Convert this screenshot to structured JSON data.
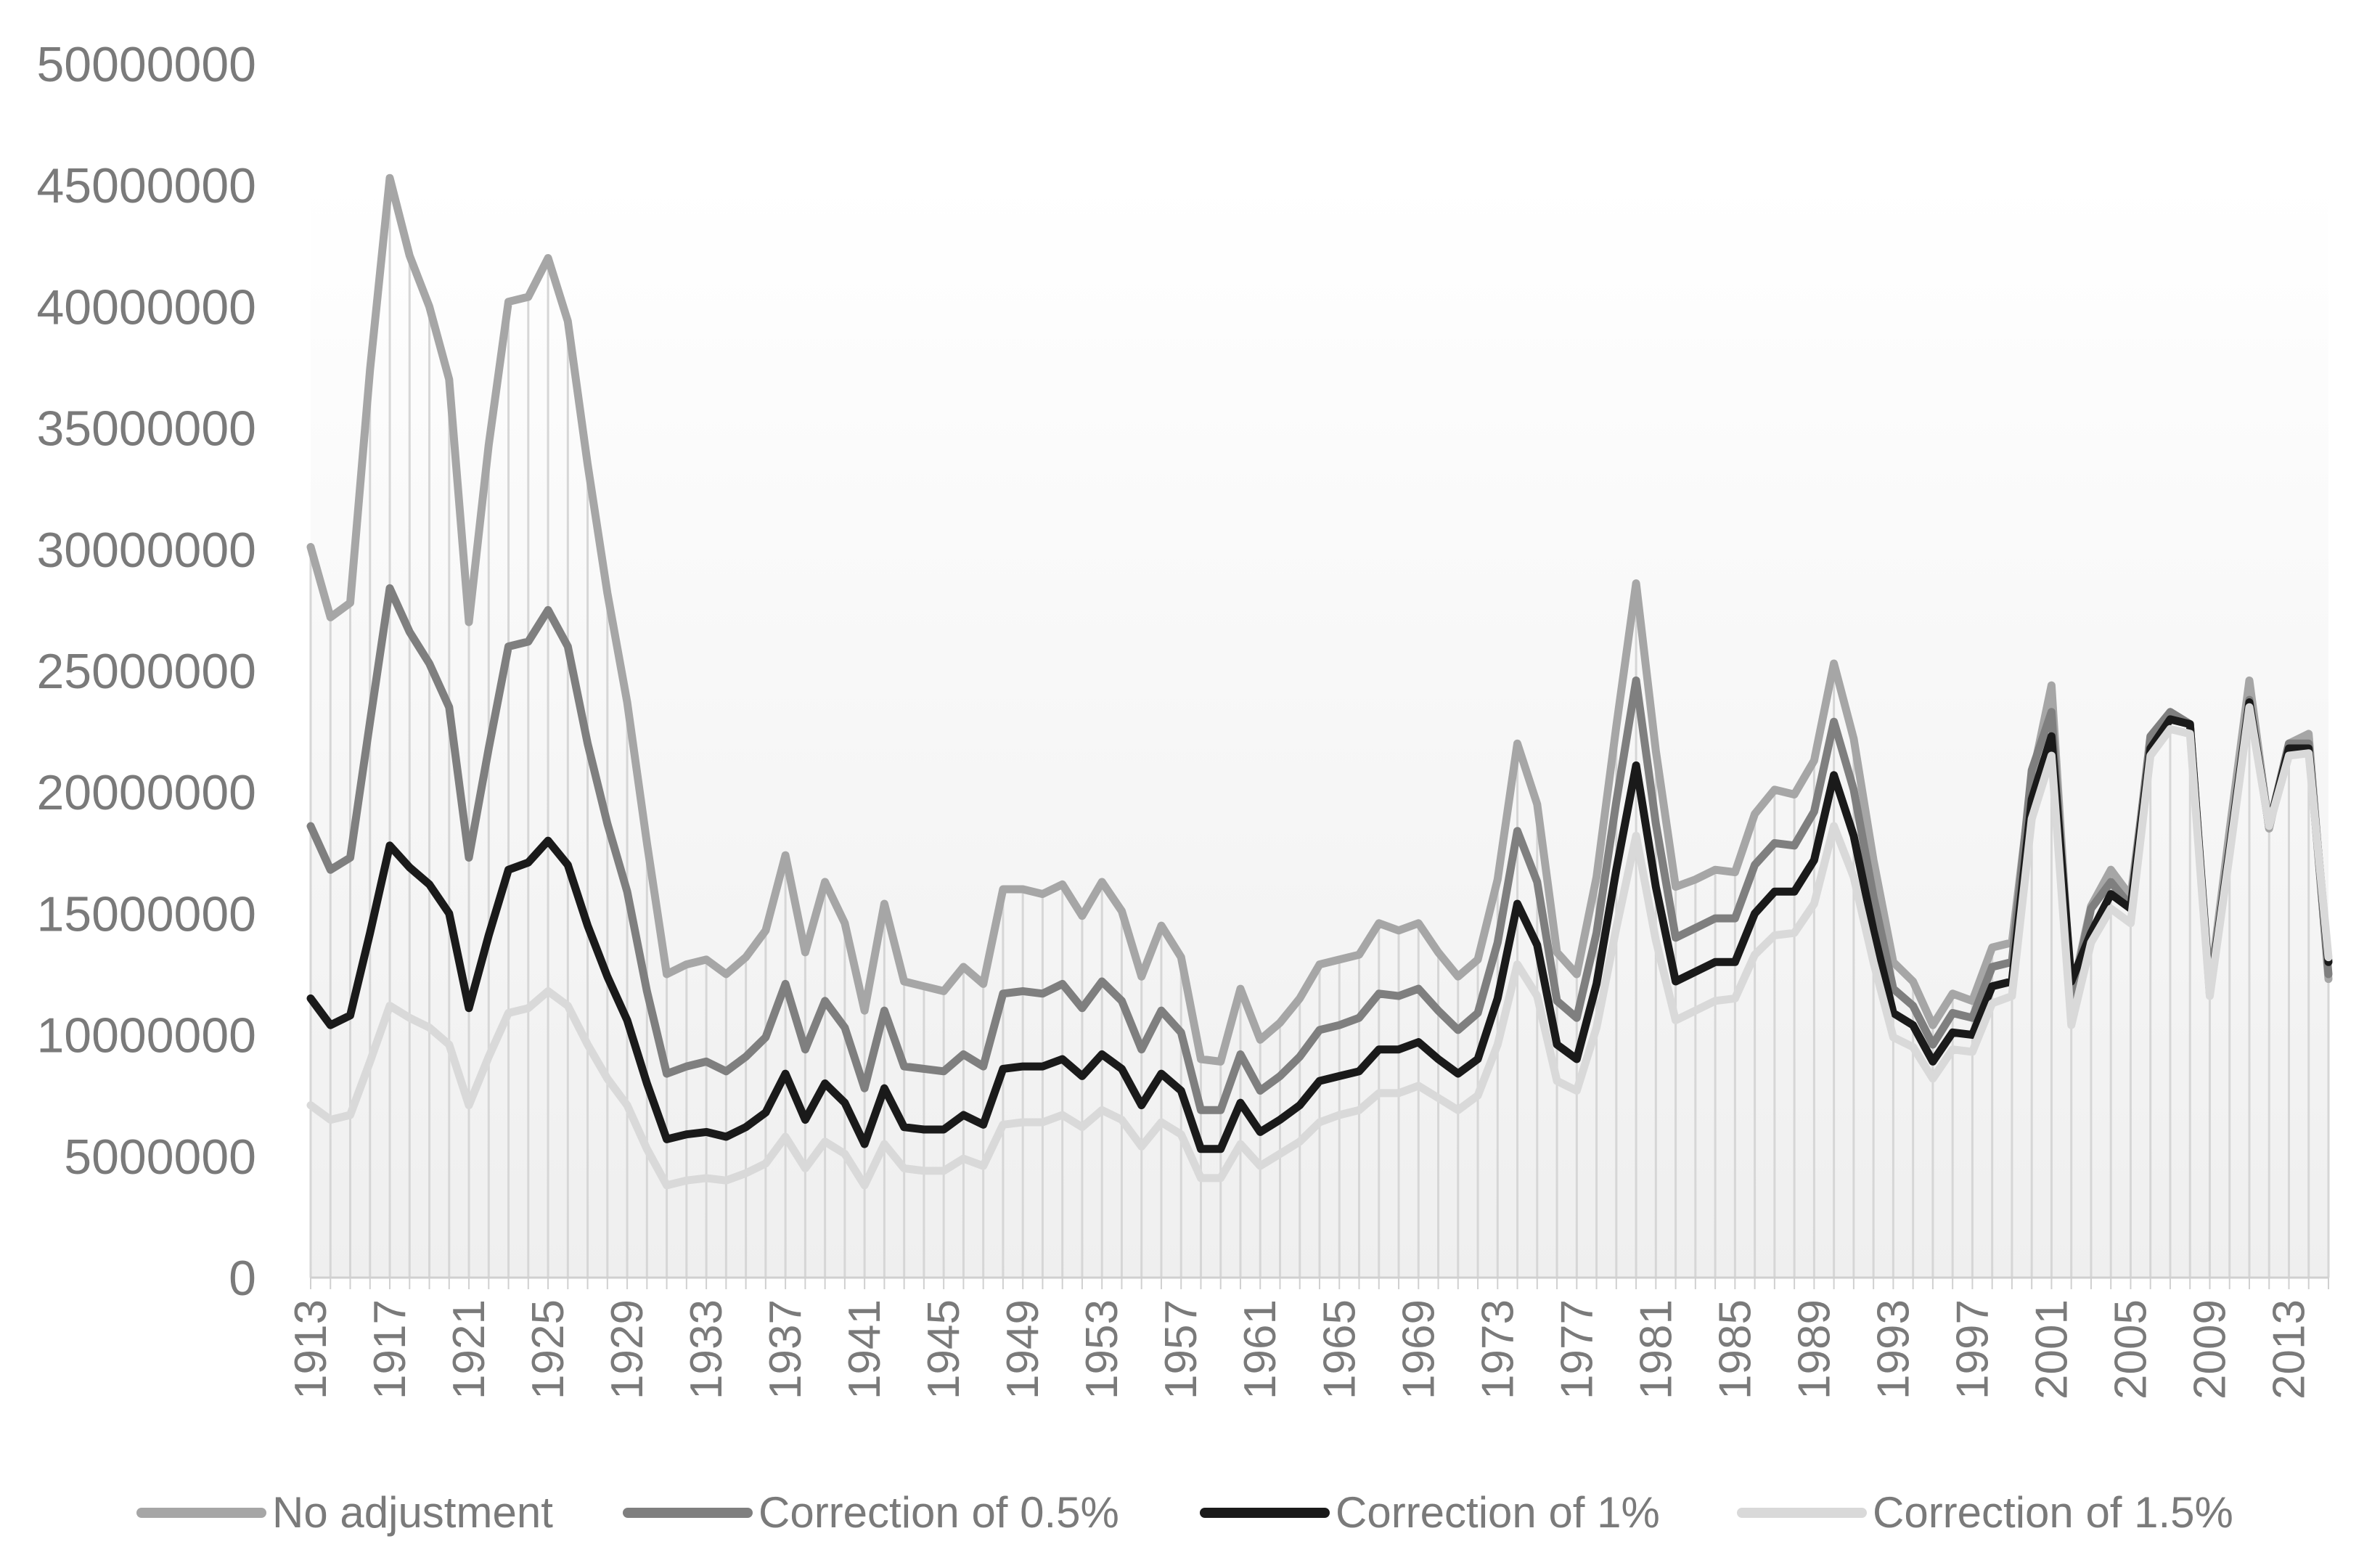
{
  "chart_data": {
    "type": "line",
    "title": "",
    "xlabel": "",
    "ylabel": "",
    "x_start": 1913,
    "x_end": 2015,
    "ylim": [
      0,
      50000000
    ],
    "yticks": [
      0,
      5000000,
      10000000,
      15000000,
      20000000,
      25000000,
      30000000,
      35000000,
      40000000,
      45000000,
      50000000
    ],
    "ytick_labels": [
      "0",
      "5000000",
      "10000000",
      "15000000",
      "20000000",
      "25000000",
      "30000000",
      "35000000",
      "40000000",
      "45000000",
      "50000000"
    ],
    "xtick_labels": [
      "1913",
      "1917",
      "1921",
      "1925",
      "1929",
      "1933",
      "1937",
      "1941",
      "1945",
      "1949",
      "1953",
      "1957",
      "1961",
      "1965",
      "1969",
      "1973",
      "1977",
      "1981",
      "1985",
      "1989",
      "1993",
      "1997",
      "2001",
      "2005",
      "2009",
      "2013"
    ],
    "xtick_step": 4,
    "grid": false,
    "vertical_drop_lines": true,
    "legend_position": "bottom",
    "series": [
      {
        "name": "No adjustment",
        "color": "#a6a6a6",
        "values": [
          30100000,
          27200000,
          27800000,
          37400000,
          45300000,
          42100000,
          40000000,
          37000000,
          27000000,
          34300000,
          40200000,
          40400000,
          42000000,
          39400000,
          33500000,
          28200000,
          23700000,
          17900000,
          12500000,
          12900000,
          13100000,
          12500000,
          13200000,
          14300000,
          17400000,
          13400000,
          16300000,
          14600000,
          11000000,
          15400000,
          12200000,
          12000000,
          11800000,
          12800000,
          12100000,
          16000000,
          16000000,
          15800000,
          16200000,
          14900000,
          16300000,
          15100000,
          12400000,
          14500000,
          13200000,
          9000000,
          8900000,
          11900000,
          9800000,
          10500000,
          11500000,
          12900000,
          13100000,
          13300000,
          14600000,
          14300000,
          14600000,
          13400000,
          12400000,
          13100000,
          16400000,
          22000000,
          19500000,
          13400000,
          12500000,
          16500000,
          22700000,
          28600000,
          21700000,
          16100000,
          16400000,
          16800000,
          16700000,
          19100000,
          20100000,
          19900000,
          21300000,
          25300000,
          22200000,
          17200000,
          13000000,
          12200000,
          10400000,
          11700000,
          11400000,
          13600000,
          13800000,
          20500000,
          24400000,
          11600000,
          15300000,
          16800000,
          15700000,
          22000000,
          23300000,
          22800000,
          11900000,
          18400000,
          24600000,
          18500000,
          22000000,
          22400000,
          12300000
        ]
      },
      {
        "name": "Correction of 0.5%",
        "color": "#7f7f7f",
        "values": [
          18600000,
          16800000,
          17300000,
          22900000,
          28400000,
          26600000,
          25300000,
          23500000,
          17300000,
          21800000,
          26000000,
          26200000,
          27500000,
          26000000,
          22000000,
          18700000,
          15900000,
          11800000,
          8400000,
          8700000,
          8900000,
          8500000,
          9100000,
          9900000,
          12100000,
          9400000,
          11400000,
          10300000,
          7800000,
          11000000,
          8700000,
          8600000,
          8500000,
          9200000,
          8700000,
          11700000,
          11800000,
          11700000,
          12100000,
          11100000,
          12200000,
          11400000,
          9400000,
          11000000,
          10100000,
          6900000,
          6900000,
          9200000,
          7700000,
          8300000,
          9100000,
          10200000,
          10400000,
          10700000,
          11700000,
          11600000,
          11900000,
          11000000,
          10200000,
          10900000,
          13800000,
          18400000,
          16300000,
          11400000,
          10700000,
          14200000,
          19600000,
          24600000,
          18700000,
          14000000,
          14400000,
          14800000,
          14800000,
          17000000,
          17900000,
          17800000,
          19200000,
          22900000,
          20100000,
          15700000,
          11900000,
          11200000,
          9600000,
          10900000,
          10700000,
          12800000,
          13000000,
          20900000,
          23300000,
          11400000,
          15200000,
          16300000,
          15300000,
          22300000,
          23300000,
          22800000,
          11800000,
          17700000,
          23800000,
          18600000,
          22000000,
          22000000,
          12500000
        ]
      },
      {
        "name": "Correction of 1%",
        "color": "#1a1a1a",
        "values": [
          11500000,
          10400000,
          10800000,
          14200000,
          17800000,
          16900000,
          16200000,
          15000000,
          11100000,
          14100000,
          16800000,
          17100000,
          18000000,
          17000000,
          14500000,
          12400000,
          10600000,
          8000000,
          5700000,
          5900000,
          6000000,
          5800000,
          6200000,
          6800000,
          8400000,
          6500000,
          8000000,
          7200000,
          5500000,
          7800000,
          6200000,
          6100000,
          6100000,
          6700000,
          6300000,
          8600000,
          8700000,
          8700000,
          9000000,
          8300000,
          9200000,
          8600000,
          7100000,
          8400000,
          7700000,
          5300000,
          5300000,
          7200000,
          6000000,
          6500000,
          7100000,
          8100000,
          8300000,
          8500000,
          9400000,
          9400000,
          9700000,
          9000000,
          8400000,
          9000000,
          11500000,
          15400000,
          13700000,
          9600000,
          9000000,
          12100000,
          16800000,
          21100000,
          16100000,
          12200000,
          12600000,
          13000000,
          13000000,
          15000000,
          15900000,
          15900000,
          17200000,
          20700000,
          18200000,
          14300000,
          10900000,
          10400000,
          8900000,
          10100000,
          10000000,
          12000000,
          12200000,
          19700000,
          22300000,
          12200000,
          14200000,
          15800000,
          15200000,
          21800000,
          23000000,
          22800000,
          11700000,
          17600000,
          23700000,
          18600000,
          21800000,
          21800000,
          13000000
        ]
      },
      {
        "name": "Correction of 1.5%",
        "color": "#d9d9d9",
        "values": [
          7100000,
          6500000,
          6700000,
          8900000,
          11200000,
          10700000,
          10300000,
          9600000,
          7100000,
          9100000,
          10900000,
          11100000,
          11800000,
          11200000,
          9600000,
          8200000,
          7100000,
          5300000,
          3800000,
          4000000,
          4100000,
          4000000,
          4300000,
          4700000,
          5800000,
          4500000,
          5600000,
          5100000,
          3800000,
          5500000,
          4500000,
          4400000,
          4400000,
          4900000,
          4600000,
          6300000,
          6400000,
          6400000,
          6700000,
          6200000,
          6900000,
          6500000,
          5400000,
          6400000,
          5900000,
          4100000,
          4100000,
          5500000,
          4600000,
          5100000,
          5600000,
          6400000,
          6700000,
          6900000,
          7600000,
          7600000,
          7900000,
          7400000,
          6900000,
          7500000,
          9600000,
          12900000,
          11600000,
          8100000,
          7700000,
          10300000,
          14400000,
          18200000,
          13900000,
          10600000,
          11000000,
          11400000,
          11500000,
          13300000,
          14100000,
          14200000,
          15400000,
          18600000,
          16500000,
          13000000,
          9900000,
          9500000,
          8200000,
          9400000,
          9300000,
          11300000,
          11600000,
          18900000,
          21500000,
          10400000,
          13800000,
          15200000,
          14600000,
          21500000,
          22600000,
          22400000,
          11600000,
          17400000,
          23500000,
          18600000,
          21500000,
          21600000,
          13200000
        ]
      }
    ]
  }
}
